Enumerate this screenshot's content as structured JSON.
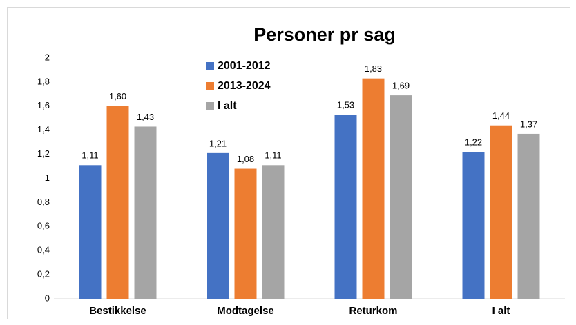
{
  "chart_data": {
    "type": "bar",
    "title": "Personer pr sag",
    "categories": [
      "Bestikkelse",
      "Modtagelse",
      "Returkom",
      "I alt"
    ],
    "series": [
      {
        "name": "2001-2012",
        "color": "#4472c4",
        "values": [
          1.11,
          1.21,
          1.53,
          1.22
        ],
        "value_labels": [
          "1,11",
          "1,21",
          "1,53",
          "1,22"
        ]
      },
      {
        "name": "2013-2024",
        "color": "#ed7d31",
        "values": [
          1.6,
          1.08,
          1.83,
          1.44
        ],
        "value_labels": [
          "1,60",
          "1,08",
          "1,83",
          "1,44"
        ]
      },
      {
        "name": "I alt",
        "color": "#a5a5a5",
        "values": [
          1.43,
          1.11,
          1.69,
          1.37
        ],
        "value_labels": [
          "1,43",
          "1,11",
          "1,69",
          "1,37"
        ]
      }
    ],
    "ylim": [
      0,
      2
    ],
    "yticks": [
      0,
      {
        "value": 0.2,
        "label": "0,2"
      },
      {
        "value": 0.4,
        "label": "0,4"
      },
      {
        "value": 0.6,
        "label": "0,6"
      },
      {
        "value": 0.8,
        "label": "0,8"
      },
      1,
      {
        "value": 1.2,
        "label": "1,2"
      },
      {
        "value": 1.4,
        "label": "1,4"
      },
      {
        "value": 1.6,
        "label": "1,6"
      },
      {
        "value": 1.8,
        "label": "1,8"
      },
      2
    ],
    "grid": false
  }
}
